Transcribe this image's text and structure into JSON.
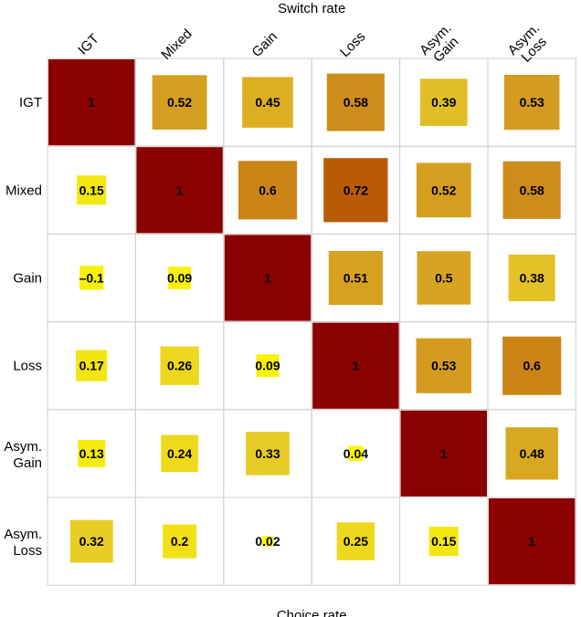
{
  "chart_data": {
    "type": "heatmap",
    "xlabel": "Switch rate",
    "ylabel": "Choice rate",
    "column_labels": [
      [
        "IGT"
      ],
      [
        "Mixed"
      ],
      [
        "Gain"
      ],
      [
        "Loss"
      ],
      [
        "Asym.",
        "Gain"
      ],
      [
        "Asym.",
        "Loss"
      ]
    ],
    "row_labels": [
      [
        "IGT"
      ],
      [
        "Mixed"
      ],
      [
        "Gain"
      ],
      [
        "Loss"
      ],
      [
        "Asym.",
        "Gain"
      ],
      [
        "Asym.",
        "Loss"
      ]
    ],
    "value_labels": [
      [
        "1",
        "0.52",
        "0.45",
        "0.58",
        "0.39",
        "0.53"
      ],
      [
        "0.15",
        "1",
        "0.6",
        "0.72",
        "0.52",
        "0.58"
      ],
      [
        "–0.1",
        "0.09",
        "1",
        "0.51",
        "0.5",
        "0.38"
      ],
      [
        "0.17",
        "0.26",
        "0.09",
        "1",
        "0.53",
        "0.6"
      ],
      [
        "0.13",
        "0.24",
        "0.33",
        "0.04",
        "1",
        "0.48"
      ],
      [
        "0.32",
        "0.2",
        "0.02",
        "0.25",
        "0.15",
        "1"
      ]
    ],
    "values": [
      [
        1,
        0.52,
        0.45,
        0.58,
        0.39,
        0.53
      ],
      [
        0.15,
        1,
        0.6,
        0.72,
        0.52,
        0.58
      ],
      [
        -0.1,
        0.09,
        1,
        0.51,
        0.5,
        0.38
      ],
      [
        0.17,
        0.26,
        0.09,
        1,
        0.53,
        0.6
      ],
      [
        0.13,
        0.24,
        0.33,
        0.04,
        1,
        0.48
      ],
      [
        0.32,
        0.2,
        0.02,
        0.25,
        0.15,
        1
      ]
    ],
    "color_scale": {
      "low": "#ffff00",
      "high": "#8b0000"
    },
    "grid": true
  }
}
